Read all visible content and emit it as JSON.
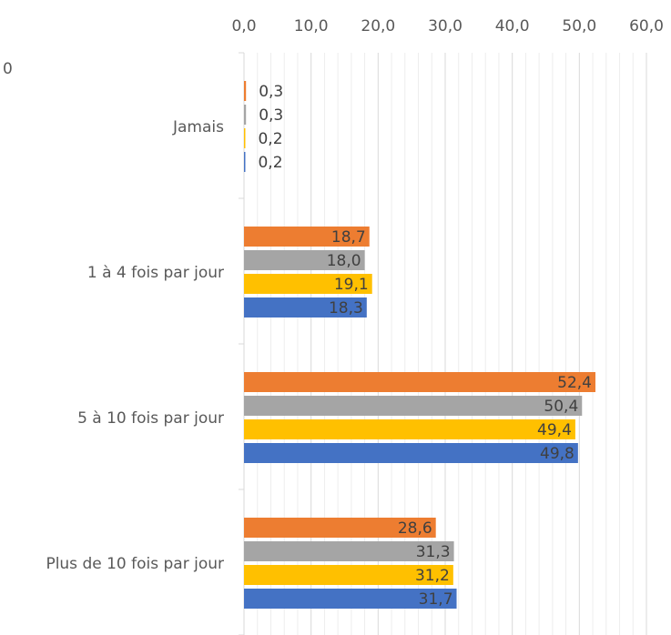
{
  "chart_data": {
    "type": "bar",
    "orientation": "horizontal",
    "x_axis_position": "top",
    "xlim": [
      0,
      60
    ],
    "x_ticks": [
      "0,0",
      "10,0",
      "20,0",
      "30,0",
      "40,0",
      "50,0",
      "60,0"
    ],
    "grid": true,
    "legend": "none",
    "categories": [
      "Jamais",
      "1 à 4 fois par jour",
      "5 à 10 fois par jour",
      "Plus de 10 fois par jour"
    ],
    "series": [
      {
        "color": "#ED7D31",
        "values": [
          0.3,
          18.7,
          52.4,
          28.6
        ],
        "labels": [
          "0,3",
          "18,7",
          "52,4",
          "28,6"
        ]
      },
      {
        "color": "#A5A5A5",
        "values": [
          0.3,
          18.0,
          50.4,
          31.3
        ],
        "labels": [
          "0,3",
          "18,0",
          "50,4",
          "31,3"
        ]
      },
      {
        "color": "#FFC000",
        "values": [
          0.2,
          19.1,
          49.4,
          31.2
        ],
        "labels": [
          "0,2",
          "19,1",
          "49,4",
          "31,2"
        ]
      },
      {
        "color": "#4472C4",
        "values": [
          0.2,
          18.3,
          49.8,
          31.7
        ],
        "labels": [
          "0,2",
          "18,3",
          "49,8",
          "31,7"
        ]
      }
    ],
    "stray_label": "0"
  }
}
